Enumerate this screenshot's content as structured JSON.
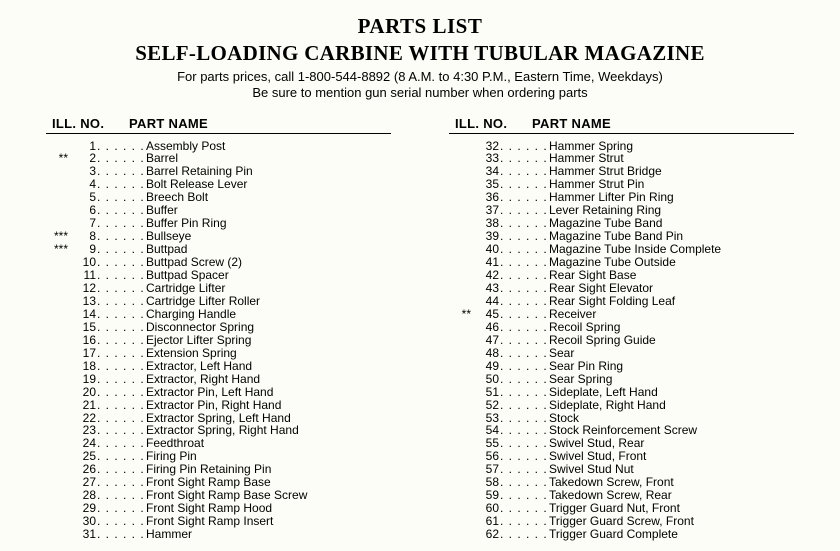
{
  "title": "PARTS LIST",
  "subtitle": "SELF-LOADING CARBINE WITH TUBULAR MAGAZINE",
  "info_line1": "For parts prices, call 1-800-544-8892 (8 A.M. to 4:30 P.M., Eastern Time, Weekdays)",
  "info_line2": "Be sure to mention gun serial number when ordering parts",
  "header_ill": "ILL.  NO.",
  "header_name": "PART NAME",
  "dots": ". . . . . . .",
  "columns": [
    {
      "rows": [
        {
          "marks": "",
          "num": "1",
          "name": "Assembly Post"
        },
        {
          "marks": "**",
          "num": "2",
          "name": "Barrel"
        },
        {
          "marks": "",
          "num": "3",
          "name": "Barrel Retaining Pin"
        },
        {
          "marks": "",
          "num": "4",
          "name": "Bolt Release Lever"
        },
        {
          "marks": "",
          "num": "5",
          "name": "Breech Bolt"
        },
        {
          "marks": "",
          "num": "6",
          "name": "Buffer"
        },
        {
          "marks": "",
          "num": "7",
          "name": "Buffer Pin Ring"
        },
        {
          "marks": "***",
          "num": "8",
          "name": "Bullseye"
        },
        {
          "marks": "***",
          "num": "9",
          "name": "Buttpad"
        },
        {
          "marks": "",
          "num": "10",
          "name": "Buttpad Screw (2)"
        },
        {
          "marks": "",
          "num": "11",
          "name": "Buttpad Spacer"
        },
        {
          "marks": "",
          "num": "12",
          "name": "Cartridge Lifter"
        },
        {
          "marks": "",
          "num": "13",
          "name": "Cartridge Lifter Roller"
        },
        {
          "marks": "",
          "num": "14",
          "name": "Charging Handle"
        },
        {
          "marks": "",
          "num": "15",
          "name": "Disconnector Spring"
        },
        {
          "marks": "",
          "num": "16",
          "name": "Ejector Lifter Spring"
        },
        {
          "marks": "",
          "num": "17",
          "name": "Extension Spring"
        },
        {
          "marks": "",
          "num": "18",
          "name": "Extractor, Left Hand"
        },
        {
          "marks": "",
          "num": "19",
          "name": "Extractor, Right Hand"
        },
        {
          "marks": "",
          "num": "20",
          "name": "Extractor Pin, Left Hand"
        },
        {
          "marks": "",
          "num": "21",
          "name": "Extractor Pin, Right Hand"
        },
        {
          "marks": "",
          "num": "22",
          "name": "Extractor Spring, Left Hand"
        },
        {
          "marks": "",
          "num": "23",
          "name": "Extractor Spring, Right Hand"
        },
        {
          "marks": "",
          "num": "24",
          "name": "Feedthroat"
        },
        {
          "marks": "",
          "num": "25",
          "name": "Firing Pin"
        },
        {
          "marks": "",
          "num": "26",
          "name": "Firing Pin Retaining Pin"
        },
        {
          "marks": "",
          "num": "27",
          "name": "Front Sight Ramp Base"
        },
        {
          "marks": "",
          "num": "28",
          "name": "Front Sight Ramp Base Screw"
        },
        {
          "marks": "",
          "num": "29",
          "name": "Front Sight Ramp Hood"
        },
        {
          "marks": "",
          "num": "30",
          "name": "Front Sight Ramp Insert"
        },
        {
          "marks": "",
          "num": "31",
          "name": "Hammer"
        }
      ]
    },
    {
      "rows": [
        {
          "marks": "",
          "num": "32",
          "name": "Hammer Spring"
        },
        {
          "marks": "",
          "num": "33",
          "name": "Hammer Strut"
        },
        {
          "marks": "",
          "num": "34",
          "name": "Hammer Strut Bridge"
        },
        {
          "marks": "",
          "num": "35",
          "name": "Hammer Strut Pin"
        },
        {
          "marks": "",
          "num": "36",
          "name": "Hammer Lifter Pin Ring"
        },
        {
          "marks": "",
          "num": "37",
          "name": "Lever Retaining Ring"
        },
        {
          "marks": "",
          "num": "38",
          "name": "Magazine Tube Band"
        },
        {
          "marks": "",
          "num": "39",
          "name": "Magazine Tube Band Pin"
        },
        {
          "marks": "",
          "num": "40",
          "name": "Magazine Tube Inside Complete"
        },
        {
          "marks": "",
          "num": "41",
          "name": "Magazine Tube Outside"
        },
        {
          "marks": "",
          "num": "42",
          "name": "Rear Sight Base"
        },
        {
          "marks": "",
          "num": "43",
          "name": "Rear Sight Elevator"
        },
        {
          "marks": "",
          "num": "44",
          "name": "Rear Sight Folding Leaf"
        },
        {
          "marks": "**",
          "num": "45",
          "name": "Receiver"
        },
        {
          "marks": "",
          "num": "46",
          "name": "Recoil Spring"
        },
        {
          "marks": "",
          "num": "47",
          "name": "Recoil Spring Guide"
        },
        {
          "marks": "",
          "num": "48",
          "name": "Sear"
        },
        {
          "marks": "",
          "num": "49",
          "name": "Sear Pin Ring"
        },
        {
          "marks": "",
          "num": "50",
          "name": "Sear Spring"
        },
        {
          "marks": "",
          "num": "51",
          "name": "Sideplate, Left Hand"
        },
        {
          "marks": "",
          "num": "52",
          "name": "Sideplate, Right Hand"
        },
        {
          "marks": "",
          "num": "53",
          "name": "Stock"
        },
        {
          "marks": "",
          "num": "54",
          "name": "Stock Reinforcement Screw"
        },
        {
          "marks": "",
          "num": "55",
          "name": "Swivel Stud, Rear"
        },
        {
          "marks": "",
          "num": "56",
          "name": "Swivel Stud, Front"
        },
        {
          "marks": "",
          "num": "57",
          "name": "Swivel Stud Nut"
        },
        {
          "marks": "",
          "num": "58",
          "name": "Takedown Screw, Front"
        },
        {
          "marks": "",
          "num": "59",
          "name": "Takedown Screw, Rear"
        },
        {
          "marks": "",
          "num": "60",
          "name": "Trigger Guard Nut, Front"
        },
        {
          "marks": "",
          "num": "61",
          "name": "Trigger Guard Screw, Front"
        },
        {
          "marks": "",
          "num": "62",
          "name": "Trigger Guard Complete"
        }
      ]
    }
  ]
}
